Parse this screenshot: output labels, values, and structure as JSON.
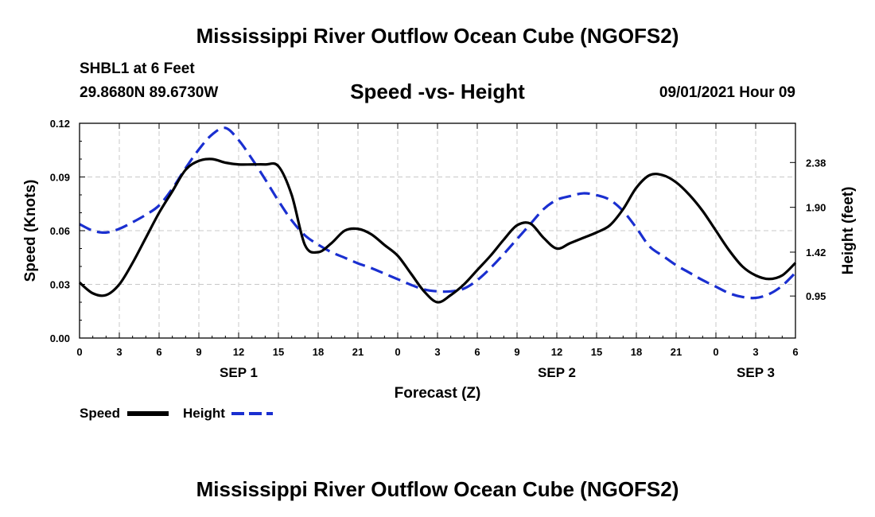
{
  "header": {
    "title": "Mississippi River Outflow Ocean Cube (NGOFS2)",
    "station": "SHBL1 at 6 Feet",
    "coords": "29.8680N  89.6730W",
    "subtitle": "Speed -vs- Height",
    "datetime": "09/01/2021 Hour 09"
  },
  "footer": {
    "title": "Mississippi River Outflow Ocean Cube (NGOFS2)"
  },
  "chart_data": {
    "type": "line",
    "title": "Speed -vs- Height",
    "xlabel": "Forecast (Z)",
    "ylabel": "Speed (Knots)",
    "y2label": "Height (feet)",
    "xlim": [
      0,
      54
    ],
    "ylim": [
      0,
      0.12
    ],
    "y2lim": [
      0.5,
      2.8
    ],
    "grid": true,
    "x_tick_values": [
      0,
      3,
      6,
      9,
      12,
      15,
      18,
      21,
      24,
      27,
      30,
      33,
      36,
      39,
      42,
      45,
      48,
      51,
      54
    ],
    "x_tick_labels": [
      "0",
      "3",
      "6",
      "9",
      "12",
      "15",
      "18",
      "21",
      "0",
      "3",
      "6",
      "9",
      "12",
      "15",
      "18",
      "21",
      "0",
      "3",
      "6"
    ],
    "date_labels": [
      {
        "label": "SEP 1",
        "hour": 12
      },
      {
        "label": "SEP 2",
        "hour": 36
      },
      {
        "label": "SEP 3",
        "hour": 51
      }
    ],
    "y_ticks": [
      0.0,
      0.03,
      0.06,
      0.09,
      0.12
    ],
    "y_tick_labels": [
      "0.00",
      "0.03",
      "0.06",
      "0.09",
      "0.12"
    ],
    "y2_ticks": [
      0.95,
      1.42,
      1.9,
      2.38
    ],
    "y2_tick_labels": [
      "0.95",
      "1.42",
      "1.90",
      "2.38"
    ],
    "series": [
      {
        "name": "Speed",
        "axis": "left",
        "color": "#000000",
        "style": "solid",
        "x": [
          0,
          1,
          2,
          3,
          4,
          5,
          6,
          7,
          8,
          9,
          10,
          11,
          12,
          13,
          14,
          15,
          16,
          17,
          18,
          19,
          20,
          21,
          22,
          23,
          24,
          25,
          26,
          27,
          28,
          29,
          30,
          31,
          32,
          33,
          34,
          35,
          36,
          37,
          38,
          39,
          40,
          41,
          42,
          43,
          44,
          45,
          46,
          47,
          48,
          49,
          50,
          51,
          52,
          53,
          54
        ],
        "values": [
          0.031,
          0.025,
          0.024,
          0.03,
          0.042,
          0.056,
          0.07,
          0.082,
          0.094,
          0.099,
          0.1,
          0.098,
          0.097,
          0.097,
          0.097,
          0.096,
          0.08,
          0.052,
          0.048,
          0.053,
          0.06,
          0.061,
          0.058,
          0.052,
          0.046,
          0.036,
          0.026,
          0.02,
          0.024,
          0.03,
          0.038,
          0.046,
          0.055,
          0.063,
          0.064,
          0.056,
          0.05,
          0.053,
          0.056,
          0.059,
          0.063,
          0.072,
          0.084,
          0.091,
          0.091,
          0.087,
          0.08,
          0.071,
          0.06,
          0.049,
          0.04,
          0.035,
          0.033,
          0.035,
          0.042
        ]
      },
      {
        "name": "Height",
        "axis": "right",
        "color": "#1a2fd0",
        "style": "dashed",
        "x": [
          0,
          1,
          2,
          3,
          4,
          5,
          6,
          7,
          8,
          9,
          10,
          11,
          12,
          13,
          14,
          15,
          16,
          17,
          18,
          19,
          20,
          21,
          22,
          23,
          24,
          25,
          26,
          27,
          28,
          29,
          30,
          31,
          32,
          33,
          34,
          35,
          36,
          37,
          38,
          39,
          40,
          41,
          42,
          43,
          44,
          45,
          46,
          47,
          48,
          49,
          50,
          51,
          52,
          53,
          54
        ],
        "values": [
          1.72,
          1.65,
          1.63,
          1.67,
          1.74,
          1.82,
          1.92,
          2.1,
          2.32,
          2.52,
          2.68,
          2.75,
          2.62,
          2.42,
          2.2,
          1.97,
          1.76,
          1.6,
          1.5,
          1.42,
          1.36,
          1.3,
          1.25,
          1.19,
          1.13,
          1.07,
          1.02,
          1.0,
          1.0,
          1.03,
          1.12,
          1.25,
          1.4,
          1.56,
          1.72,
          1.88,
          1.98,
          2.02,
          2.05,
          2.03,
          1.98,
          1.86,
          1.68,
          1.48,
          1.38,
          1.28,
          1.2,
          1.12,
          1.05,
          0.98,
          0.94,
          0.93,
          0.97,
          1.06,
          1.2
        ]
      }
    ]
  },
  "legend": {
    "items": [
      {
        "label": "Speed",
        "color": "#000000",
        "style": "solid"
      },
      {
        "label": "Height",
        "color": "#1a2fd0",
        "style": "dashed"
      }
    ]
  }
}
